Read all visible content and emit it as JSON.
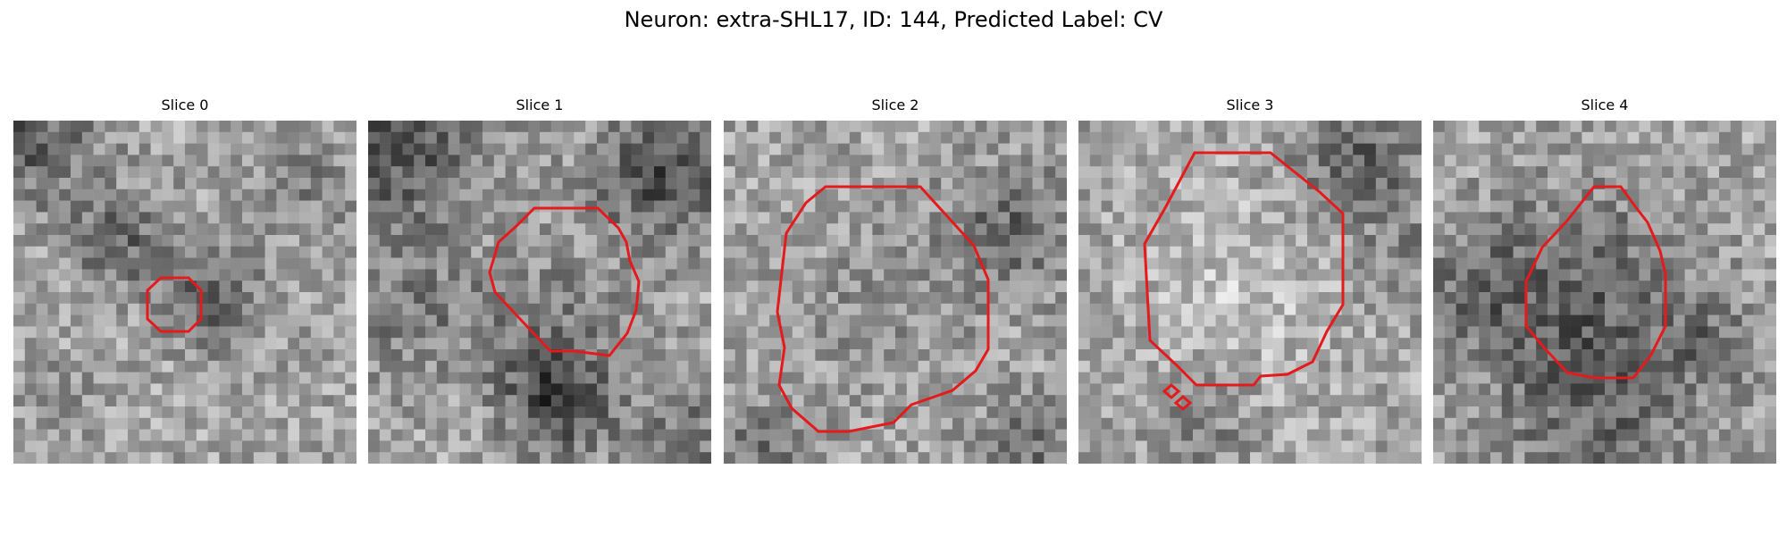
{
  "figure": {
    "title": "Neuron: extra-SHL17, ID: 144, Predicted Label: CV"
  },
  "contour_color": "#e41a1c",
  "slices": [
    {
      "label": "Slice 0"
    },
    {
      "label": "Slice 1"
    },
    {
      "label": "Slice 2"
    },
    {
      "label": "Slice 3"
    },
    {
      "label": "Slice 4"
    }
  ]
}
